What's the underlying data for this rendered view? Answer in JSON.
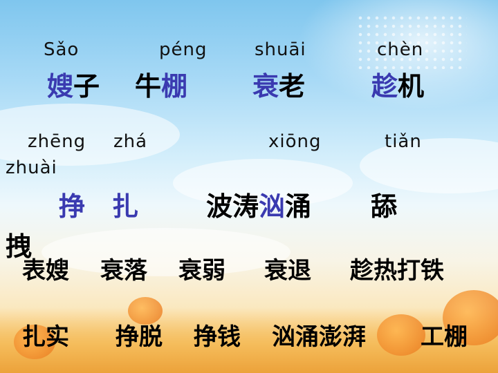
{
  "colors": {
    "highlight": "#3a3ab0",
    "text": "#000000"
  },
  "row1_pinyin": [
    "Sǎo",
    "péng",
    "shuāi",
    "chèn"
  ],
  "row1_words": [
    {
      "hl": "嫂",
      "rest": "子"
    },
    {
      "pre": "牛",
      "hl": "棚"
    },
    {
      "hl": "衰",
      "rest": "老"
    },
    {
      "hl": "趁",
      "rest": "机"
    }
  ],
  "row2_pinyin": [
    "zhēng",
    "zhá",
    "xiōng",
    "tiǎn",
    "zhuài"
  ],
  "row2_words": {
    "zheng": "挣",
    "zha": "扎",
    "word3_pre": "波涛",
    "word3_hl": "汹",
    "word3_post": "涌",
    "tian": "舔",
    "zhuai": "拽"
  },
  "row3_words": [
    "表嫂",
    "衰落",
    "衰弱",
    "衰退",
    "趁热打铁"
  ],
  "row4_words": [
    "扎实",
    "挣脱",
    "挣钱",
    "汹涌澎湃",
    "工棚"
  ]
}
